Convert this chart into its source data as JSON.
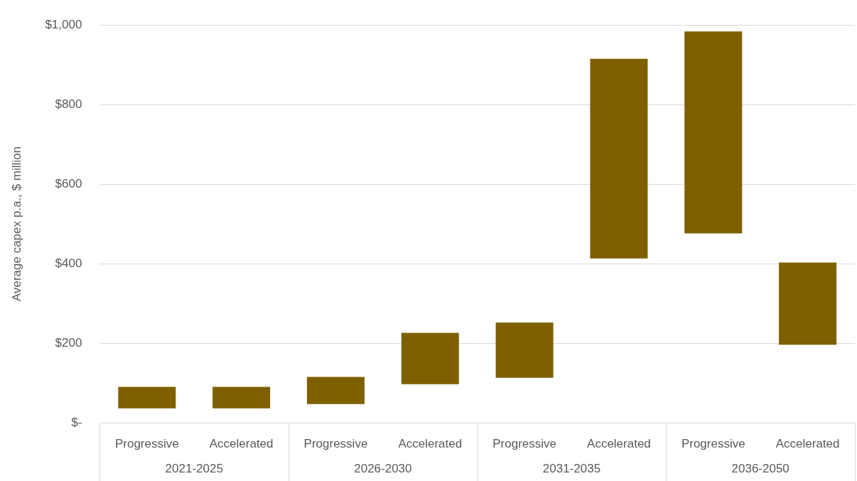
{
  "chart_data": {
    "type": "bar",
    "ylabel": "Average capex p.a., $ million",
    "categories": [
      "Progressive",
      "Accelerated",
      "Progressive",
      "Accelerated",
      "Progressive",
      "Accelerated",
      "Progressive",
      "Accelerated"
    ],
    "base": [
      36,
      36,
      47,
      97,
      113,
      413,
      476,
      196
    ],
    "values": [
      54,
      54,
      68,
      129,
      139,
      502,
      508,
      207
    ],
    "color": "#7f6000",
    "ylim": [
      0,
      1000
    ],
    "yticks": [
      {
        "value": 0,
        "label": "$-"
      },
      {
        "value": 200,
        "label": "$200"
      },
      {
        "value": 400,
        "label": "$400"
      },
      {
        "value": 600,
        "label": "$600"
      },
      {
        "value": 800,
        "label": "$800"
      },
      {
        "value": 1000,
        "label": "$1,000"
      }
    ],
    "grid": "y",
    "legend": false,
    "annotations": [
      "2021-2025",
      "2026-2030",
      "2031-2035",
      "2036-2050"
    ]
  }
}
